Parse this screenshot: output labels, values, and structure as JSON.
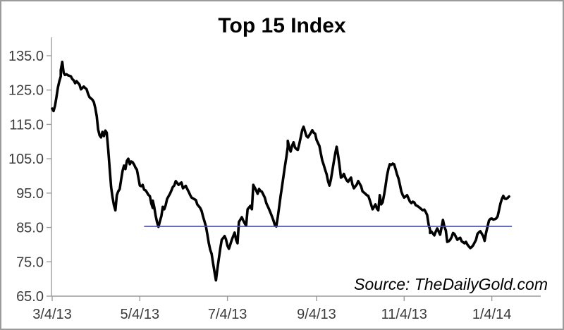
{
  "title": "Top 15 Index",
  "source_credit": "Source: TheDailyGold.com",
  "chart_data": {
    "type": "line",
    "title": "Top 15 Index",
    "grid": false,
    "legend": false,
    "x_axis": {
      "label": "",
      "tick_labels": [
        "3/4/13",
        "5/4/13",
        "7/4/13",
        "9/4/13",
        "11/4/13",
        "1/4/14"
      ],
      "tick_days": [
        0,
        61,
        122,
        184,
        245,
        306
      ],
      "domain_days": [
        0,
        340
      ],
      "note": "daily series; day 0 = 3/4/13, series ends ~day 318 (mid-Jan 2014)"
    },
    "y_axis": {
      "label": "",
      "tick_labels": [
        "65.0",
        "75.0",
        "85.0",
        "95.0",
        "105.0",
        "115.0",
        "125.0",
        "135.0"
      ],
      "tick_values": [
        65,
        75,
        85,
        95,
        105,
        115,
        125,
        135
      ],
      "domain": [
        65,
        140.3
      ]
    },
    "colors": {
      "series": "#000000",
      "reference_line": "#4a50c0",
      "axis": "#9c9c9c",
      "tick_label": "#3c3c3c",
      "title": "#000000"
    },
    "reference_line": {
      "value": 85.3,
      "start_day": 64,
      "end_day": 320,
      "color": "#4a50c0"
    },
    "series": [
      {
        "name": "Top 15 Index",
        "color": "#000000",
        "points_day_value": [
          [
            0,
            119.6
          ],
          [
            1,
            118.9
          ],
          [
            2,
            120.5
          ],
          [
            3,
            123.0
          ],
          [
            4,
            125.8
          ],
          [
            5,
            127.6
          ],
          [
            6,
            129.0
          ],
          [
            6,
            130.8
          ],
          [
            7,
            133.2
          ],
          [
            8,
            130.0
          ],
          [
            9,
            129.4
          ],
          [
            10,
            129.6
          ],
          [
            11,
            129.3
          ],
          [
            13,
            129.0
          ],
          [
            14,
            128.2
          ],
          [
            15,
            127.8
          ],
          [
            16,
            127.0
          ],
          [
            17,
            127.6
          ],
          [
            19,
            126.6
          ],
          [
            20,
            125.2
          ],
          [
            22,
            126.0
          ],
          [
            24,
            125.2
          ],
          [
            25,
            123.9
          ],
          [
            26,
            122.9
          ],
          [
            28,
            122.2
          ],
          [
            29,
            121.5
          ],
          [
            30,
            119.8
          ],
          [
            31,
            117.4
          ],
          [
            32,
            113.5
          ],
          [
            33,
            111.8
          ],
          [
            34,
            111.2
          ],
          [
            35,
            112.8
          ],
          [
            36,
            111.6
          ],
          [
            37,
            113.2
          ],
          [
            38,
            112.6
          ],
          [
            39,
            107.7
          ],
          [
            40,
            102.3
          ],
          [
            41,
            96.8
          ],
          [
            42,
            93.8
          ],
          [
            43,
            91.5
          ],
          [
            44,
            90.0
          ],
          [
            45,
            94.4
          ],
          [
            46,
            95.5
          ],
          [
            47,
            96.2
          ],
          [
            48,
            98.9
          ],
          [
            49,
            101.5
          ],
          [
            50,
            103.0
          ],
          [
            51,
            102.0
          ],
          [
            52,
            104.4
          ],
          [
            53,
            105.0
          ],
          [
            54,
            103.4
          ],
          [
            55,
            104.2
          ],
          [
            56,
            104.0
          ],
          [
            57,
            103.3
          ],
          [
            58,
            102.4
          ],
          [
            59,
            101.8
          ],
          [
            60,
            99.5
          ],
          [
            61,
            97.2
          ],
          [
            62,
            97.0
          ],
          [
            63,
            97.4
          ],
          [
            64,
            96.0
          ],
          [
            65,
            95.8
          ],
          [
            66,
            95.2
          ],
          [
            67,
            94.5
          ],
          [
            68,
            94.1
          ],
          [
            69,
            92.0
          ],
          [
            70,
            90.7
          ],
          [
            70,
            92.8
          ],
          [
            71,
            91.0
          ],
          [
            72,
            88.5
          ],
          [
            73,
            86.5
          ],
          [
            74,
            85.2
          ],
          [
            75,
            86.8
          ],
          [
            76,
            88.3
          ],
          [
            77,
            91.0
          ],
          [
            78,
            90.3
          ],
          [
            79,
            91.5
          ],
          [
            80,
            93.3
          ],
          [
            82,
            94.8
          ],
          [
            83,
            95.8
          ],
          [
            84,
            96.8
          ],
          [
            85,
            97.2
          ],
          [
            86,
            98.5
          ],
          [
            88,
            97.4
          ],
          [
            89,
            97.8
          ],
          [
            90,
            98.1
          ],
          [
            91,
            96.4
          ],
          [
            93,
            97.1
          ],
          [
            94,
            96.2
          ],
          [
            95,
            95.4
          ],
          [
            96,
            94.5
          ],
          [
            97,
            93.7
          ],
          [
            99,
            93.2
          ],
          [
            100,
            93.0
          ],
          [
            101,
            91.7
          ],
          [
            103,
            90.7
          ],
          [
            104,
            89.8
          ],
          [
            105,
            88.2
          ],
          [
            106,
            86.8
          ],
          [
            107,
            85.3
          ],
          [
            108,
            83.0
          ],
          [
            109,
            80.5
          ],
          [
            110,
            78.5
          ],
          [
            111,
            77.3
          ],
          [
            112,
            74.5
          ],
          [
            113,
            72.0
          ],
          [
            114,
            69.6
          ],
          [
            115,
            73.0
          ],
          [
            117,
            78.8
          ],
          [
            118,
            81.4
          ],
          [
            120,
            82.5
          ],
          [
            121,
            81.5
          ],
          [
            122,
            79.7
          ],
          [
            123,
            78.8
          ],
          [
            125,
            81.4
          ],
          [
            126,
            82.5
          ],
          [
            127,
            83.5
          ],
          [
            128,
            81.4
          ],
          [
            129,
            80.4
          ],
          [
            130,
            86.6
          ],
          [
            132,
            88.0
          ],
          [
            133,
            87.0
          ],
          [
            134,
            86.2
          ],
          [
            135,
            85.5
          ],
          [
            136,
            90.3
          ],
          [
            138,
            91.3
          ],
          [
            139,
            90.3
          ],
          [
            140,
            97.4
          ],
          [
            142,
            95.8
          ],
          [
            143,
            94.8
          ],
          [
            144,
            96.2
          ],
          [
            145,
            95.6
          ],
          [
            146,
            95.4
          ],
          [
            148,
            93.7
          ],
          [
            149,
            92.1
          ],
          [
            151,
            90.3
          ],
          [
            153,
            88.2
          ],
          [
            154,
            87.0
          ],
          [
            155,
            85.7
          ],
          [
            156,
            85.3
          ],
          [
            157,
            88.0
          ],
          [
            158,
            91.0
          ],
          [
            159,
            94.1
          ],
          [
            160,
            97.0
          ],
          [
            161,
            99.9
          ],
          [
            162,
            102.9
          ],
          [
            163,
            105.5
          ],
          [
            164,
            108.5
          ],
          [
            164,
            110.2
          ],
          [
            165,
            108.3
          ],
          [
            166,
            107.1
          ],
          [
            167,
            108.8
          ],
          [
            168,
            109.8
          ],
          [
            169,
            108.3
          ],
          [
            170,
            107.8
          ],
          [
            171,
            107.6
          ],
          [
            172,
            109.3
          ],
          [
            173,
            111.3
          ],
          [
            174,
            113.3
          ],
          [
            175,
            114.3
          ],
          [
            176,
            112.9
          ],
          [
            177,
            111.6
          ],
          [
            178,
            111.2
          ],
          [
            180,
            112.5
          ],
          [
            181,
            113.3
          ],
          [
            182,
            112.6
          ],
          [
            183,
            112.3
          ],
          [
            184,
            110.5
          ],
          [
            186,
            108.7
          ],
          [
            187,
            106.5
          ],
          [
            188,
            104.5
          ],
          [
            189,
            103.2
          ],
          [
            190,
            101.8
          ],
          [
            191,
            100.5
          ],
          [
            192,
            98.5
          ],
          [
            193,
            97.2
          ],
          [
            194,
            99.0
          ],
          [
            195,
            101.5
          ],
          [
            196,
            104.0
          ],
          [
            197,
            106.5
          ],
          [
            198,
            108.5
          ],
          [
            199,
            106.0
          ],
          [
            200,
            103.0
          ],
          [
            201,
            99.5
          ],
          [
            202,
            99.8
          ],
          [
            203,
            100.6
          ],
          [
            204,
            99.5
          ],
          [
            205,
            98.7
          ],
          [
            206,
            98.3
          ],
          [
            207,
            99.0
          ],
          [
            208,
            99.5
          ],
          [
            209,
            97.5
          ],
          [
            210,
            96.4
          ],
          [
            212,
            97.5
          ],
          [
            213,
            98.5
          ],
          [
            215,
            97.0
          ],
          [
            216,
            95.5
          ],
          [
            218,
            94.8
          ],
          [
            219,
            94.4
          ],
          [
            220,
            94.2
          ],
          [
            221,
            93.0
          ],
          [
            223,
            90.3
          ],
          [
            224,
            91.0
          ],
          [
            225,
            91.7
          ],
          [
            226,
            90.5
          ],
          [
            227,
            90.0
          ],
          [
            228,
            94.4
          ],
          [
            229,
            91.7
          ],
          [
            230,
            92.3
          ],
          [
            231,
            94.5
          ],
          [
            232,
            97.0
          ],
          [
            233,
            100.0
          ],
          [
            234,
            102.0
          ],
          [
            235,
            103.4
          ],
          [
            236,
            103.2
          ],
          [
            237,
            103.6
          ],
          [
            238,
            103.4
          ],
          [
            239,
            102.0
          ],
          [
            240,
            100.5
          ],
          [
            241,
            99.3
          ],
          [
            242,
            97.5
          ],
          [
            243,
            95.5
          ],
          [
            244,
            94.4
          ],
          [
            245,
            93.7
          ],
          [
            246,
            94.0
          ],
          [
            247,
            94.4
          ],
          [
            248,
            93.5
          ],
          [
            249,
            92.5
          ],
          [
            250,
            92.1
          ],
          [
            251,
            92.5
          ],
          [
            252,
            92.3
          ],
          [
            253,
            91.5
          ],
          [
            254,
            91.3
          ],
          [
            255,
            91.0
          ],
          [
            256,
            90.7
          ],
          [
            257,
            90.3
          ],
          [
            258,
            90.0
          ],
          [
            259,
            90.2
          ],
          [
            260,
            89.5
          ],
          [
            261,
            88.6
          ],
          [
            262,
            85.8
          ],
          [
            263,
            84.3
          ],
          [
            263,
            83.4
          ],
          [
            264,
            83.8
          ],
          [
            265,
            83.2
          ],
          [
            266,
            82.7
          ],
          [
            267,
            83.8
          ],
          [
            268,
            84.7
          ],
          [
            269,
            83.8
          ],
          [
            270,
            82.9
          ],
          [
            271,
            85.0
          ],
          [
            272,
            87.2
          ],
          [
            273,
            85.2
          ],
          [
            274,
            84.1
          ],
          [
            275,
            80.8
          ],
          [
            276,
            81.0
          ],
          [
            277,
            81.4
          ],
          [
            278,
            82.2
          ],
          [
            279,
            83.4
          ],
          [
            280,
            83.1
          ],
          [
            282,
            81.4
          ],
          [
            283,
            81.8
          ],
          [
            284,
            82.0
          ],
          [
            285,
            81.0
          ],
          [
            287,
            80.4
          ],
          [
            288,
            80.8
          ],
          [
            289,
            80.0
          ],
          [
            290,
            79.5
          ],
          [
            291,
            79.0
          ],
          [
            292,
            79.3
          ],
          [
            293,
            79.8
          ],
          [
            295,
            81.4
          ],
          [
            296,
            83.1
          ],
          [
            297,
            83.6
          ],
          [
            298,
            83.9
          ],
          [
            300,
            82.5
          ],
          [
            301,
            81.1
          ],
          [
            302,
            83.5
          ],
          [
            304,
            87.0
          ],
          [
            305,
            87.5
          ],
          [
            306,
            87.6
          ],
          [
            307,
            87.3
          ],
          [
            308,
            87.4
          ],
          [
            309,
            87.6
          ],
          [
            310,
            88.2
          ],
          [
            311,
            90.0
          ],
          [
            312,
            92.0
          ],
          [
            313,
            93.3
          ],
          [
            314,
            94.2
          ],
          [
            315,
            93.4
          ],
          [
            316,
            93.3
          ],
          [
            317,
            93.6
          ],
          [
            318,
            94.0
          ]
        ]
      }
    ]
  }
}
